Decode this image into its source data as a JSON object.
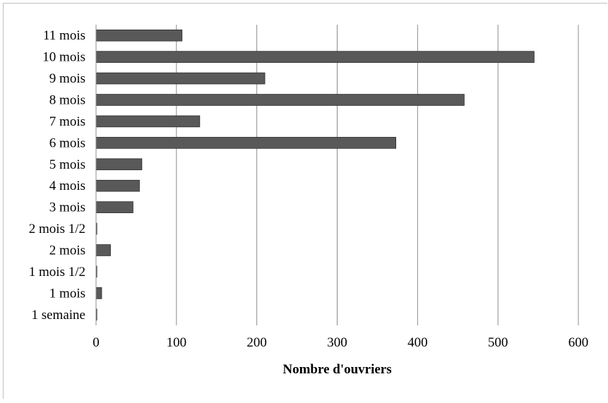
{
  "chart_data": {
    "type": "bar",
    "orientation": "horizontal",
    "title": "",
    "xlabel": "Nombre d'ouvriers",
    "ylabel": "",
    "categories": [
      "1 semaine",
      "1 mois",
      "1 mois 1/2",
      "2 mois",
      "2 mois 1/2",
      "3 mois",
      "4 mois",
      "5 mois",
      "6 mois",
      "7 mois",
      "8 mois",
      "9 mois",
      "10 mois",
      "11 mois"
    ],
    "values": [
      1,
      7,
      1,
      18,
      1,
      46,
      54,
      57,
      373,
      129,
      458,
      210,
      545,
      107
    ],
    "xlim": [
      0,
      600
    ],
    "xticks": [
      "0",
      "100",
      "200",
      "300",
      "400",
      "500",
      "600"
    ],
    "grid": "vertical",
    "legend": "none",
    "colors": {
      "bar": "#595959",
      "bar_edge": "#2b2b2b",
      "grid": "#8c8c8c",
      "axis": "#8c8c8c"
    }
  }
}
